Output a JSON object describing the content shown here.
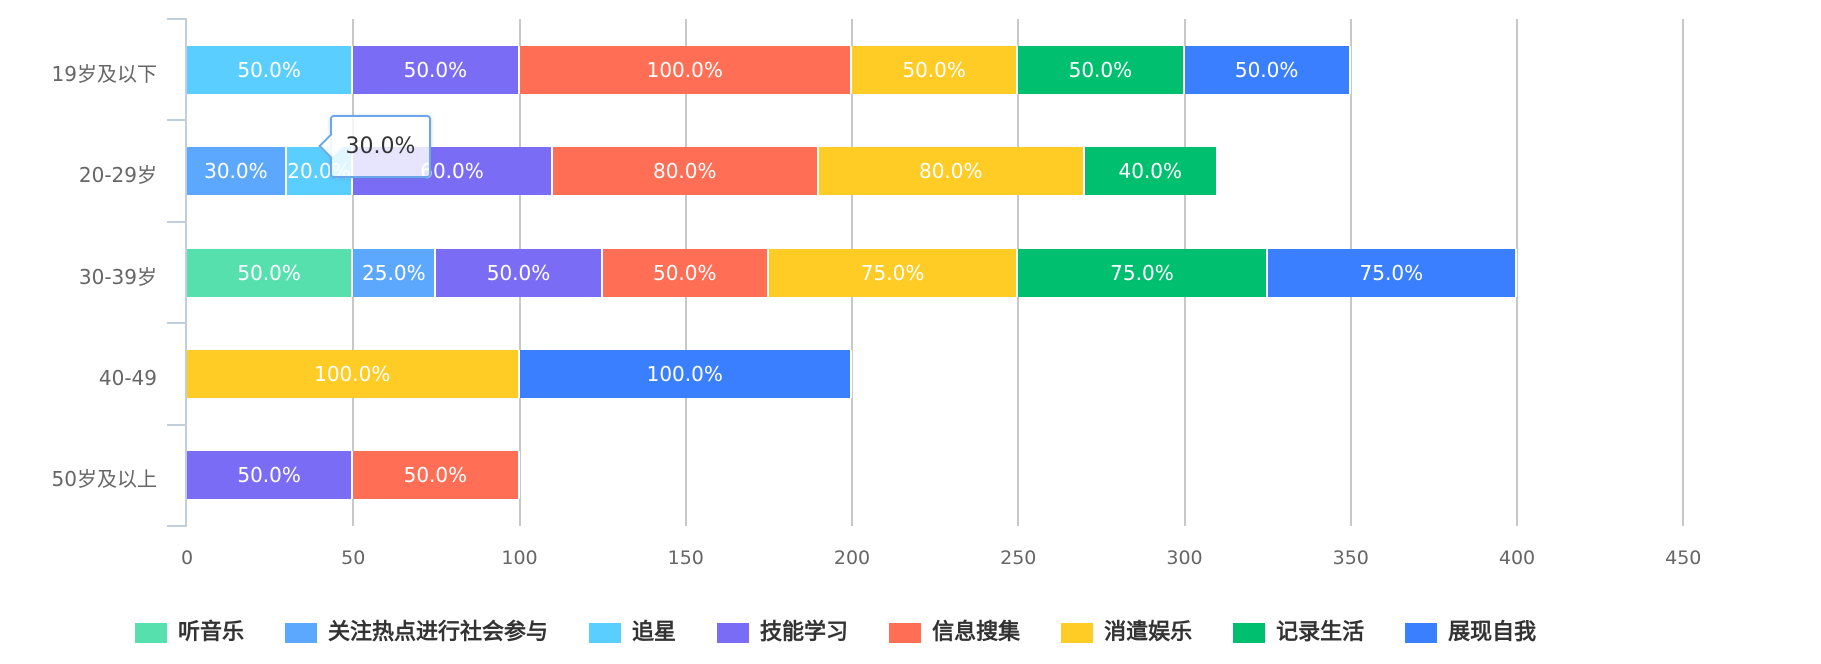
{
  "chart_data": {
    "type": "bar",
    "orientation": "horizontal",
    "stacked": true,
    "title": "",
    "xlabel": "",
    "ylabel": "",
    "xlim": [
      0,
      450
    ],
    "x_ticks": [
      "0",
      "50",
      "100",
      "150",
      "200",
      "250",
      "300",
      "350",
      "400",
      "450"
    ],
    "categories": [
      "19岁及以下",
      "20-29岁",
      "30-39岁",
      "40-49",
      "50岁及以上"
    ],
    "grid": true,
    "legend_position": "bottom",
    "series": [
      {
        "name": "听音乐",
        "color": "#55e0ae",
        "values": [
          0,
          0,
          50,
          0,
          0
        ],
        "labels": [
          "",
          "",
          "50.0%",
          "",
          ""
        ]
      },
      {
        "name": "关注热点进行社会参与",
        "color": "#5ca8ff",
        "values": [
          0,
          30,
          25,
          0,
          0
        ],
        "labels": [
          "",
          "30.0%",
          "25.0%",
          "",
          ""
        ]
      },
      {
        "name": "追星",
        "color": "#5acfff",
        "values": [
          50,
          20,
          0,
          0,
          0
        ],
        "labels": [
          "50.0%",
          "20.0%",
          "",
          "",
          ""
        ]
      },
      {
        "name": "技能学习",
        "color": "#7b6cf6",
        "values": [
          50,
          60,
          50,
          0,
          50
        ],
        "labels": [
          "50.0%",
          "60.0%",
          "50.0%",
          "",
          "50.0%"
        ]
      },
      {
        "name": "信息搜集",
        "color": "#ff6e55",
        "values": [
          100,
          80,
          50,
          0,
          50
        ],
        "labels": [
          "100.0%",
          "80.0%",
          "50.0%",
          "",
          "50.0%"
        ]
      },
      {
        "name": "消遣娱乐",
        "color": "#ffcc26",
        "values": [
          50,
          80,
          75,
          100,
          0
        ],
        "labels": [
          "50.0%",
          "80.0%",
          "75.0%",
          "100.0%",
          ""
        ]
      },
      {
        "name": "记录生活",
        "color": "#00bf6f",
        "values": [
          50,
          40,
          75,
          0,
          0
        ],
        "labels": [
          "50.0%",
          "40.0%",
          "75.0%",
          "",
          ""
        ]
      },
      {
        "name": "展现自我",
        "color": "#3a7fff",
        "values": [
          50,
          0,
          75,
          100,
          0
        ],
        "labels": [
          "50.0%",
          "",
          "75.0%",
          "100.0%",
          ""
        ]
      }
    ],
    "annotations": [
      {
        "type": "tooltip",
        "category": "20-29岁",
        "series": "关注热点进行社会参与",
        "text": "30.0%"
      }
    ]
  },
  "tooltip": {
    "text": "30.0%"
  }
}
